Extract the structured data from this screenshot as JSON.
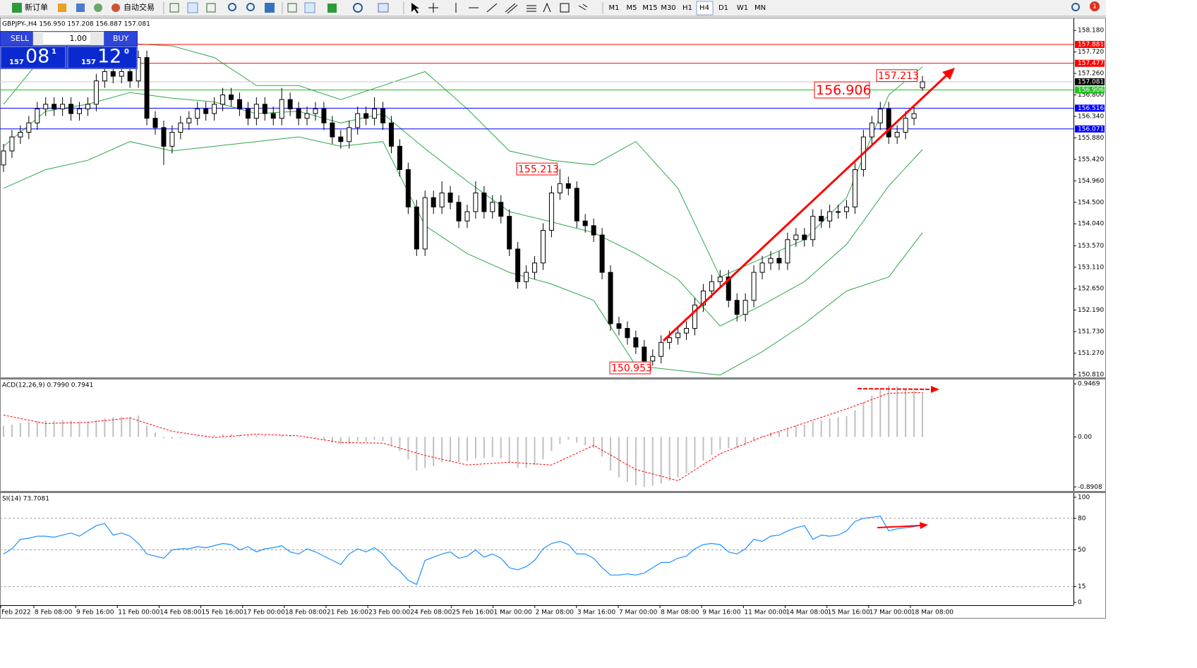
{
  "toolbar": {
    "new_order": "新订单",
    "auto_trading": "自动交易",
    "timeframes": [
      "M1",
      "M5",
      "M15",
      "M30",
      "H1",
      "H4",
      "D1",
      "W1",
      "MN"
    ],
    "active_timeframe": "H4",
    "notifications": "1"
  },
  "trade_panel": {
    "sell": "SELL",
    "buy": "BUY",
    "lots": "1.00",
    "bid_big": "157",
    "bid_main": "08",
    "bid_frac": "1",
    "ask_big": "157",
    "ask_main": "12",
    "ask_frac": "0"
  },
  "time_axis": [
    "Feb 2022",
    "8 Feb 08:00",
    "9 Feb 16:00",
    "11 Feb 00:00",
    "14 Feb 08:00",
    "15 Feb 16:00",
    "17 Feb 00:00",
    "18 Feb 08:00",
    "21 Feb 16:00",
    "23 Feb 00:00",
    "24 Feb 08:00",
    "25 Feb 16:00",
    "1 Mar 00:00",
    "2 Mar 08:00",
    "3 Mar 16:00",
    "7 Mar 00:00",
    "8 Mar 08:00",
    "9 Mar 16:00",
    "11 Mar 00:00",
    "14 Mar 08:00",
    "15 Mar 16:00",
    "17 Mar 00:00",
    "18 Mar 08:00"
  ],
  "chart_data": [
    {
      "type": "candlestick",
      "title": "GBPJPY-,H4  156.950 157.208 156.887 157.081",
      "open": [
        155.3,
        155.6,
        155.9,
        156.0,
        156.2,
        156.5,
        156.6,
        156.5,
        156.6,
        156.4,
        156.5,
        156.6,
        157.1,
        157.3,
        157.2,
        157.3,
        157.1,
        157.6,
        156.3,
        156.1,
        155.7,
        156.0,
        156.2,
        156.3,
        156.5,
        156.4,
        156.6,
        156.8,
        156.7,
        156.5,
        156.3,
        156.6,
        156.4,
        156.3,
        156.7,
        156.5,
        156.3,
        156.4,
        156.5,
        156.2,
        155.9,
        155.8,
        156.1,
        156.4,
        156.3,
        156.5,
        156.2,
        155.7,
        155.2,
        154.4,
        153.5,
        154.6,
        154.4,
        154.7,
        154.5,
        154.1,
        154.3,
        154.7,
        154.3,
        154.5,
        154.2,
        153.5,
        152.8,
        153.0,
        153.2,
        153.9,
        154.7,
        154.9,
        154.8,
        154.1,
        154.0,
        153.8,
        153.0,
        151.9,
        151.8,
        151.6,
        151.4,
        151.1,
        151.2,
        151.5,
        151.6,
        151.7,
        151.8,
        152.3,
        152.6,
        152.8,
        152.9,
        152.4,
        152.1,
        152.4,
        153.0,
        153.2,
        153.3,
        153.2,
        153.7,
        153.8,
        153.7,
        154.2,
        154.1,
        154.3,
        154.3,
        154.4,
        155.2,
        155.9,
        156.2,
        156.5,
        155.9,
        156.0,
        156.3,
        156.95
      ],
      "high": [
        155.75,
        156.05,
        156.15,
        156.35,
        156.65,
        156.75,
        156.75,
        156.75,
        156.75,
        156.65,
        156.75,
        157.25,
        157.45,
        157.45,
        157.45,
        157.45,
        157.75,
        157.75,
        156.45,
        156.25,
        156.15,
        156.35,
        156.45,
        156.65,
        156.65,
        156.75,
        156.95,
        156.95,
        156.85,
        156.65,
        156.75,
        156.75,
        156.55,
        156.95,
        156.85,
        156.65,
        156.55,
        156.65,
        156.65,
        156.35,
        156.05,
        156.25,
        156.55,
        156.55,
        156.75,
        156.65,
        156.35,
        155.85,
        155.35,
        154.55,
        154.75,
        154.75,
        154.95,
        154.85,
        154.65,
        154.45,
        154.95,
        154.85,
        154.65,
        154.65,
        154.35,
        153.65,
        153.15,
        153.35,
        154.05,
        154.85,
        155.213,
        155.05,
        154.95,
        154.25,
        154.15,
        153.95,
        153.15,
        152.05,
        151.95,
        151.75,
        151.55,
        151.35,
        151.65,
        151.75,
        151.85,
        151.95,
        152.45,
        152.75,
        152.95,
        153.05,
        153.05,
        152.55,
        152.55,
        153.15,
        153.35,
        153.45,
        153.45,
        153.85,
        153.95,
        153.95,
        154.35,
        154.35,
        154.45,
        154.45,
        154.55,
        155.35,
        156.05,
        156.35,
        156.65,
        156.65,
        156.15,
        156.45,
        156.55,
        157.208
      ],
      "low": [
        155.15,
        155.45,
        155.75,
        155.85,
        156.05,
        156.35,
        156.35,
        156.35,
        156.25,
        156.25,
        156.35,
        156.45,
        156.95,
        157.05,
        157.05,
        156.95,
        156.95,
        156.15,
        155.95,
        155.3,
        155.55,
        155.85,
        156.05,
        156.15,
        156.25,
        156.25,
        156.45,
        156.55,
        156.35,
        156.15,
        156.15,
        156.25,
        156.15,
        156.15,
        156.35,
        156.15,
        156.15,
        156.25,
        156.05,
        155.75,
        155.65,
        155.65,
        155.95,
        156.15,
        156.15,
        156.05,
        155.55,
        155.05,
        154.25,
        153.35,
        153.35,
        154.25,
        154.25,
        154.35,
        153.95,
        153.95,
        154.15,
        154.15,
        154.15,
        154.05,
        153.35,
        152.65,
        152.65,
        152.85,
        153.05,
        153.75,
        154.55,
        154.65,
        153.95,
        153.85,
        153.65,
        152.85,
        151.75,
        151.65,
        151.45,
        151.25,
        150.953,
        151.0,
        151.05,
        151.35,
        151.45,
        151.55,
        151.65,
        152.15,
        152.45,
        152.65,
        152.25,
        151.95,
        151.95,
        152.25,
        152.85,
        153.05,
        153.05,
        153.05,
        153.55,
        153.55,
        153.55,
        153.95,
        153.95,
        154.15,
        154.15,
        154.25,
        155.05,
        155.75,
        156.05,
        155.75,
        155.75,
        155.85,
        156.15,
        156.887
      ],
      "close": [
        155.6,
        155.9,
        156.0,
        156.2,
        156.5,
        156.6,
        156.5,
        156.6,
        156.4,
        156.5,
        156.6,
        157.1,
        157.3,
        157.2,
        157.3,
        157.1,
        157.6,
        156.3,
        156.1,
        155.7,
        156.0,
        156.2,
        156.3,
        156.5,
        156.4,
        156.6,
        156.8,
        156.7,
        156.5,
        156.3,
        156.6,
        156.4,
        156.3,
        156.7,
        156.5,
        156.3,
        156.4,
        156.5,
        156.2,
        155.9,
        155.8,
        156.1,
        156.4,
        156.3,
        156.5,
        156.2,
        155.7,
        155.2,
        154.4,
        153.5,
        154.6,
        154.4,
        154.7,
        154.5,
        154.1,
        154.3,
        154.7,
        154.3,
        154.5,
        154.2,
        153.5,
        152.8,
        153.0,
        153.2,
        153.9,
        154.7,
        154.9,
        154.8,
        154.1,
        154.0,
        153.8,
        153.0,
        151.9,
        151.8,
        151.6,
        151.4,
        151.1,
        151.2,
        151.5,
        151.6,
        151.7,
        151.8,
        152.3,
        152.6,
        152.8,
        152.9,
        152.4,
        152.1,
        152.4,
        153.0,
        153.2,
        153.3,
        153.2,
        153.7,
        153.8,
        153.7,
        154.2,
        154.1,
        154.3,
        154.3,
        154.4,
        155.2,
        155.9,
        156.2,
        156.5,
        155.9,
        156.0,
        156.3,
        156.4,
        157.081
      ],
      "up_color": "#ffffff",
      "down_color": "#000000",
      "bands": {
        "color": "#2ea84a",
        "index": [
          0,
          5,
          10,
          15,
          20,
          25,
          30,
          35,
          40,
          45,
          50,
          55,
          60,
          65,
          70,
          75,
          80,
          85,
          90,
          95,
          100,
          105,
          109
        ],
        "upper": [
          156.6,
          157.7,
          157.8,
          157.9,
          157.85,
          157.6,
          157.0,
          157.0,
          156.7,
          157.0,
          157.3,
          156.5,
          155.6,
          155.4,
          155.3,
          155.8,
          154.8,
          152.9,
          153.3,
          153.7,
          154.6,
          156.8,
          157.4
        ],
        "middle": [
          155.7,
          156.45,
          156.6,
          156.85,
          156.73,
          156.65,
          156.4,
          156.45,
          156.2,
          156.4,
          155.65,
          154.95,
          154.3,
          154.08,
          153.85,
          153.4,
          152.85,
          151.85,
          152.3,
          152.8,
          153.6,
          154.85,
          155.63
        ],
        "lower": [
          154.8,
          155.2,
          155.4,
          155.8,
          155.6,
          155.7,
          155.8,
          155.9,
          155.7,
          155.8,
          154.0,
          153.4,
          153.0,
          152.75,
          152.4,
          151.0,
          150.9,
          150.8,
          151.3,
          151.9,
          152.6,
          152.9,
          153.85
        ]
      },
      "ylim": [
        150.75,
        158.44
      ],
      "yticks": [
        {
          "value": 158.18,
          "label": "158.180"
        },
        {
          "value": 157.72,
          "label": "157.720"
        },
        {
          "value": 157.26,
          "label": "157.260"
        },
        {
          "value": 156.8,
          "label": "156.800"
        },
        {
          "value": 156.34,
          "label": "156.340"
        },
        {
          "value": 155.88,
          "label": "155.880"
        },
        {
          "value": 155.42,
          "label": "155.420"
        },
        {
          "value": 154.96,
          "label": "154.960"
        },
        {
          "value": 154.5,
          "label": "154.500"
        },
        {
          "value": 154.04,
          "label": "154.040"
        },
        {
          "value": 153.57,
          "label": "153.570"
        },
        {
          "value": 153.11,
          "label": "153.110"
        },
        {
          "value": 152.65,
          "label": "152.650"
        },
        {
          "value": 152.19,
          "label": "152.190"
        },
        {
          "value": 151.73,
          "label": "151.730"
        },
        {
          "value": 151.27,
          "label": "151.270"
        },
        {
          "value": 150.81,
          "label": "150.810"
        }
      ],
      "levels": [
        {
          "value": 157.881,
          "color": "#ff0000",
          "tag": "#ff0000"
        },
        {
          "value": 157.477,
          "color": "#ff0000",
          "tag": "#ff0000"
        },
        {
          "value": 157.081,
          "color": "#c8c8c8",
          "tag": "#000000"
        },
        {
          "value": 156.906,
          "color": "#22c022",
          "tag": "#22c022"
        },
        {
          "value": 156.516,
          "color": "#0000ff",
          "tag": "#0000ff"
        },
        {
          "value": 156.071,
          "color": "#0000ff",
          "tag": "#0000ff"
        }
      ],
      "annotations": [
        {
          "value": 155.213
        },
        {
          "value": 150.953
        },
        {
          "value": 156.906
        },
        {
          "value": 157.213
        }
      ],
      "annotation_color": "#ff0000"
    },
    {
      "type": "macd",
      "title": "ACD(12,26,9) 0.7990 0.7941",
      "series": [
        {
          "color": "#c0c0c0",
          "values": [
            0.2,
            0.22,
            0.25,
            0.27,
            0.28,
            0.29,
            0.29,
            0.3,
            0.29,
            0.28,
            0.28,
            0.3,
            0.33,
            0.35,
            0.36,
            0.36,
            0.38,
            0.2,
            0.08,
            -0.02,
            -0.03,
            -0.02,
            0,
            0.02,
            0.02,
            0.03,
            0.05,
            0.05,
            0.04,
            0.02,
            0.03,
            0.02,
            0.01,
            0.03,
            0.02,
            -0.01,
            -0.02,
            -0.02,
            -0.05,
            -0.1,
            -0.13,
            -0.12,
            -0.08,
            -0.08,
            -0.05,
            -0.07,
            -0.15,
            -0.25,
            -0.4,
            -0.6,
            -0.55,
            -0.52,
            -0.45,
            -0.43,
            -0.45,
            -0.43,
            -0.38,
            -0.38,
            -0.36,
            -0.38,
            -0.45,
            -0.55,
            -0.55,
            -0.5,
            -0.4,
            -0.25,
            -0.12,
            -0.05,
            -0.1,
            -0.15,
            -0.2,
            -0.35,
            -0.6,
            -0.72,
            -0.8,
            -0.86,
            -0.89,
            -0.87,
            -0.83,
            -0.78,
            -0.72,
            -0.65,
            -0.55,
            -0.42,
            -0.32,
            -0.22,
            -0.2,
            -0.2,
            -0.15,
            -0.05,
            0.02,
            0.08,
            0.1,
            0.16,
            0.2,
            0.22,
            0.28,
            0.3,
            0.33,
            0.35,
            0.37,
            0.48,
            0.62,
            0.74,
            0.86,
            0.92,
            0.9,
            0.86,
            0.82,
            0.799
          ]
        },
        {
          "color": "#ff0000",
          "index": [
            0,
            5,
            10,
            15,
            20,
            25,
            30,
            35,
            40,
            45,
            50,
            55,
            60,
            65,
            70,
            75,
            80,
            85,
            90,
            95,
            100,
            105,
            109
          ],
          "values": [
            0.39,
            0.24,
            0.26,
            0.34,
            0.1,
            -0.01,
            0.05,
            0.02,
            -0.1,
            -0.11,
            -0.33,
            -0.5,
            -0.45,
            -0.5,
            -0.15,
            -0.58,
            -0.78,
            -0.3,
            0,
            0.25,
            0.5,
            0.78,
            0.7941
          ]
        }
      ],
      "ylim": [
        -0.9625,
        1.025
      ],
      "yticks": [
        0.9469,
        {
          "value": 0,
          "label": "0.00"
        },
        -0.8908
      ]
    },
    {
      "type": "line",
      "title": "SI(14) 73.7081",
      "color": "#1e90ff",
      "values": [
        46,
        51,
        60,
        61,
        63,
        63,
        62,
        64,
        66,
        63,
        68,
        73,
        75,
        64,
        66,
        63,
        56,
        46,
        44,
        42,
        50,
        51,
        51,
        53,
        52,
        54,
        56,
        55,
        50,
        53,
        48,
        51,
        52,
        54,
        48,
        46,
        51,
        48,
        44,
        40,
        36,
        46,
        51,
        48,
        52,
        46,
        36,
        30,
        21,
        17,
        40,
        43,
        46,
        48,
        42,
        44,
        50,
        43,
        46,
        42,
        33,
        31,
        34,
        40,
        51,
        56,
        58,
        55,
        46,
        46,
        42,
        33,
        26,
        26,
        27,
        26,
        28,
        33,
        38,
        38,
        42,
        44,
        51,
        55,
        56,
        55,
        48,
        46,
        51,
        60,
        58,
        63,
        64,
        68,
        71,
        73,
        60,
        64,
        63,
        64,
        68,
        77,
        80,
        81,
        82,
        68,
        70,
        71,
        72,
        73.7081
      ],
      "ylim": [
        -2.7,
        104
      ],
      "yticks": [
        100,
        80,
        50,
        15,
        0
      ],
      "levels": [
        80,
        50,
        15
      ]
    }
  ]
}
